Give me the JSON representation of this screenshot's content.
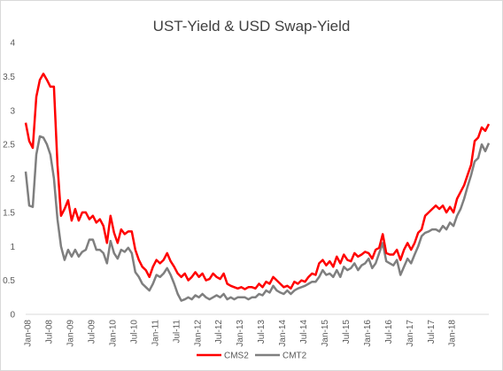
{
  "chart_data": {
    "type": "line",
    "title": "UST-Yield & USD Swap-Yield",
    "xlabel": "",
    "ylabel": "",
    "ylim": [
      0,
      4
    ],
    "yticks": [
      "0",
      "0.5",
      "1",
      "1.5",
      "2",
      "2.5",
      "3",
      "3.5",
      "4"
    ],
    "x_tick_labels": [
      "Jan-08",
      "Jul-08",
      "Jan-09",
      "Jul-09",
      "Jan-10",
      "Jul-10",
      "Jan-11",
      "Jul-11",
      "Jan-12",
      "Jul-12",
      "Jan-13",
      "Jul-13",
      "Jan-14",
      "Jul-14",
      "Jan-15",
      "Jul-15",
      "Jan-16",
      "Jul-16",
      "Jan-17",
      "Jul-17",
      "Jan-18"
    ],
    "x_start": "Jan-08",
    "x_end": "Jun-18",
    "grid": false,
    "legend_position": "bottom",
    "series": [
      {
        "name": "CMS2",
        "color": "#ff0000",
        "values": [
          2.82,
          2.55,
          2.45,
          3.2,
          3.45,
          3.54,
          3.45,
          3.35,
          3.35,
          2.2,
          1.45,
          1.55,
          1.68,
          1.38,
          1.55,
          1.38,
          1.5,
          1.5,
          1.4,
          1.45,
          1.35,
          1.4,
          1.3,
          1.05,
          1.45,
          1.2,
          1.05,
          1.25,
          1.18,
          1.22,
          1.22,
          0.95,
          0.8,
          0.7,
          0.65,
          0.55,
          0.7,
          0.8,
          0.75,
          0.8,
          0.9,
          0.78,
          0.7,
          0.6,
          0.55,
          0.6,
          0.5,
          0.55,
          0.62,
          0.55,
          0.6,
          0.5,
          0.52,
          0.6,
          0.55,
          0.52,
          0.6,
          0.45,
          0.42,
          0.4,
          0.38,
          0.4,
          0.37,
          0.4,
          0.4,
          0.38,
          0.45,
          0.4,
          0.48,
          0.45,
          0.55,
          0.5,
          0.45,
          0.4,
          0.42,
          0.38,
          0.48,
          0.45,
          0.5,
          0.48,
          0.55,
          0.6,
          0.58,
          0.75,
          0.8,
          0.72,
          0.78,
          0.7,
          0.85,
          0.75,
          0.88,
          0.8,
          0.78,
          0.9,
          0.85,
          0.88,
          0.92,
          0.9,
          0.82,
          0.95,
          0.98,
          1.18,
          0.9,
          0.88,
          0.88,
          0.95,
          0.8,
          0.95,
          1.05,
          0.95,
          1.05,
          1.2,
          1.25,
          1.45,
          1.5,
          1.55,
          1.6,
          1.55,
          1.6,
          1.5,
          1.58,
          1.5,
          1.7,
          1.8,
          1.9,
          2.05,
          2.2,
          2.55,
          2.6,
          2.75,
          2.7,
          2.8
        ]
      },
      {
        "name": "CMT2",
        "color": "#7f7f7f",
        "values": [
          2.1,
          1.6,
          1.58,
          2.35,
          2.62,
          2.6,
          2.5,
          2.35,
          2.0,
          1.4,
          1.0,
          0.8,
          0.95,
          0.85,
          0.95,
          0.85,
          0.92,
          0.95,
          1.1,
          1.1,
          0.95,
          0.95,
          0.9,
          0.75,
          1.08,
          0.9,
          0.82,
          0.95,
          0.92,
          0.98,
          0.9,
          0.62,
          0.55,
          0.45,
          0.4,
          0.35,
          0.45,
          0.58,
          0.55,
          0.6,
          0.68,
          0.58,
          0.45,
          0.3,
          0.2,
          0.22,
          0.25,
          0.22,
          0.28,
          0.25,
          0.3,
          0.25,
          0.22,
          0.25,
          0.28,
          0.25,
          0.3,
          0.22,
          0.25,
          0.22,
          0.25,
          0.25,
          0.25,
          0.22,
          0.25,
          0.25,
          0.3,
          0.28,
          0.35,
          0.32,
          0.42,
          0.35,
          0.32,
          0.3,
          0.35,
          0.3,
          0.35,
          0.38,
          0.4,
          0.42,
          0.45,
          0.48,
          0.48,
          0.55,
          0.65,
          0.58,
          0.6,
          0.55,
          0.65,
          0.55,
          0.7,
          0.65,
          0.68,
          0.75,
          0.65,
          0.72,
          0.75,
          0.82,
          0.68,
          0.75,
          0.9,
          1.05,
          0.78,
          0.75,
          0.72,
          0.8,
          0.58,
          0.7,
          0.82,
          0.75,
          0.88,
          1.0,
          1.15,
          1.2,
          1.22,
          1.25,
          1.25,
          1.22,
          1.3,
          1.25,
          1.35,
          1.3,
          1.45,
          1.55,
          1.7,
          1.88,
          2.05,
          2.25,
          2.3,
          2.5,
          2.4,
          2.52
        ]
      }
    ]
  }
}
